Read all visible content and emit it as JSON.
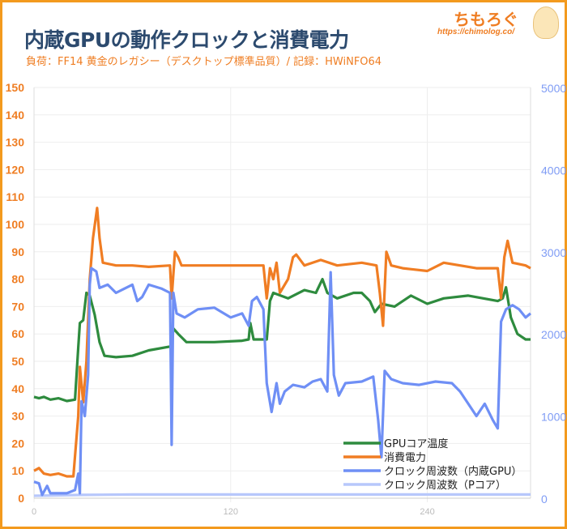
{
  "header": {
    "title": "内蔵GPUの動作クロックと消費電力",
    "subtitle": "負荷：FF14 黄金のレガシー（デスクトップ標準品質）/ 記録：HWiNFO64"
  },
  "logo": {
    "name": "ちもろぐ",
    "url": "https://chimolog.co/"
  },
  "colors": {
    "border": "#f39a1e",
    "title": "#2c4a6e",
    "left_axis": "#ef7d22",
    "right_axis": "#7f9cf5"
  },
  "chart_data": {
    "type": "line",
    "title": "内蔵GPUの動作クロックと消費電力",
    "grid": true,
    "legend_placement": "bottom-right",
    "xlim": [
      0,
      303
    ],
    "x_ticks": [
      "0",
      "120",
      "240"
    ],
    "x_tick_values": [
      0,
      120,
      240
    ],
    "ylim_left": [
      0,
      150
    ],
    "y_ticks_left": [
      "0",
      "10",
      "20",
      "30",
      "40",
      "50",
      "60",
      "70",
      "80",
      "90",
      "100",
      "110",
      "120",
      "130",
      "140",
      "150"
    ],
    "ylim_right": [
      0,
      5000
    ],
    "y_ticks_right": [
      "0",
      "1000",
      "2000",
      "3000",
      "4000",
      "5000"
    ],
    "series": [
      {
        "name": "GPUコア温度",
        "axis": "left",
        "color": "#2e8b3e",
        "points": [
          [
            0,
            37
          ],
          [
            3,
            36.5
          ],
          [
            6,
            37
          ],
          [
            10,
            36
          ],
          [
            15,
            36.5
          ],
          [
            20,
            35.5
          ],
          [
            25,
            36
          ],
          [
            27,
            55
          ],
          [
            28,
            64
          ],
          [
            30,
            65
          ],
          [
            32,
            75
          ],
          [
            34,
            74
          ],
          [
            37,
            67
          ],
          [
            40,
            57
          ],
          [
            43,
            52
          ],
          [
            50,
            51.5
          ],
          [
            60,
            52
          ],
          [
            70,
            54
          ],
          [
            84,
            55.5
          ],
          [
            85,
            62
          ],
          [
            88,
            60
          ],
          [
            93,
            57
          ],
          [
            110,
            57
          ],
          [
            127,
            57.5
          ],
          [
            131,
            58
          ],
          [
            132,
            64
          ],
          [
            134,
            58
          ],
          [
            142,
            58
          ],
          [
            144,
            72
          ],
          [
            146,
            75
          ],
          [
            155,
            73
          ],
          [
            165,
            76
          ],
          [
            172,
            75
          ],
          [
            176,
            80
          ],
          [
            179,
            75
          ],
          [
            185,
            73
          ],
          [
            195,
            75
          ],
          [
            200,
            75
          ],
          [
            205,
            72
          ],
          [
            208,
            68
          ],
          [
            212,
            71
          ],
          [
            220,
            70
          ],
          [
            230,
            74
          ],
          [
            240,
            71
          ],
          [
            250,
            73
          ],
          [
            265,
            74
          ],
          [
            283,
            72
          ],
          [
            286,
            73
          ],
          [
            288,
            77
          ],
          [
            291,
            66
          ],
          [
            295,
            60
          ],
          [
            300,
            58
          ],
          [
            303,
            58
          ]
        ]
      },
      {
        "name": "消費電力",
        "axis": "left",
        "color": "#f07d23",
        "points": [
          [
            0,
            10
          ],
          [
            3,
            11
          ],
          [
            6,
            9
          ],
          [
            10,
            8.5
          ],
          [
            15,
            9
          ],
          [
            20,
            8
          ],
          [
            24,
            8
          ],
          [
            27,
            30
          ],
          [
            28,
            48
          ],
          [
            30,
            35
          ],
          [
            32,
            50
          ],
          [
            34,
            80
          ],
          [
            36,
            95
          ],
          [
            38.5,
            106
          ],
          [
            40,
            95
          ],
          [
            42,
            86
          ],
          [
            50,
            85
          ],
          [
            60,
            85
          ],
          [
            70,
            84.5
          ],
          [
            83,
            85
          ],
          [
            84,
            73
          ],
          [
            86,
            90
          ],
          [
            88,
            88
          ],
          [
            90,
            85
          ],
          [
            110,
            85
          ],
          [
            130,
            85
          ],
          [
            140,
            85
          ],
          [
            142,
            73
          ],
          [
            144,
            84
          ],
          [
            146,
            80
          ],
          [
            148,
            86
          ],
          [
            150,
            75
          ],
          [
            155,
            80
          ],
          [
            158,
            88
          ],
          [
            160,
            89
          ],
          [
            165,
            85
          ],
          [
            175,
            87
          ],
          [
            185,
            85
          ],
          [
            200,
            86
          ],
          [
            209,
            85
          ],
          [
            211,
            75
          ],
          [
            213,
            63
          ],
          [
            215,
            90
          ],
          [
            218,
            85
          ],
          [
            225,
            84
          ],
          [
            240,
            83
          ],
          [
            250,
            86
          ],
          [
            260,
            85
          ],
          [
            270,
            84
          ],
          [
            283,
            84
          ],
          [
            285,
            73
          ],
          [
            287,
            88
          ],
          [
            289,
            94
          ],
          [
            292,
            86
          ],
          [
            300,
            85
          ],
          [
            303,
            84
          ]
        ]
      },
      {
        "name": "クロック周波数（内蔵GPU）",
        "axis": "right",
        "color": "#6f8ff5",
        "points": [
          [
            0,
            200
          ],
          [
            3,
            180
          ],
          [
            5,
            40
          ],
          [
            8,
            150
          ],
          [
            10,
            60
          ],
          [
            15,
            60
          ],
          [
            20,
            60
          ],
          [
            25,
            100
          ],
          [
            27,
            300
          ],
          [
            28,
            60
          ],
          [
            29,
            1180
          ],
          [
            31,
            1000
          ],
          [
            33,
            1500
          ],
          [
            34,
            2600
          ],
          [
            35,
            2800
          ],
          [
            38,
            2760
          ],
          [
            40,
            2560
          ],
          [
            45,
            2600
          ],
          [
            50,
            2500
          ],
          [
            55,
            2550
          ],
          [
            60,
            2600
          ],
          [
            63,
            2400
          ],
          [
            66,
            2450
          ],
          [
            70,
            2600
          ],
          [
            78,
            2550
          ],
          [
            83,
            2500
          ],
          [
            84,
            650
          ],
          [
            85,
            2500
          ],
          [
            87,
            2250
          ],
          [
            92,
            2200
          ],
          [
            100,
            2300
          ],
          [
            110,
            2320
          ],
          [
            120,
            2200
          ],
          [
            127,
            2250
          ],
          [
            131,
            2100
          ],
          [
            133,
            2400
          ],
          [
            136,
            2450
          ],
          [
            140,
            2300
          ],
          [
            142,
            1400
          ],
          [
            145,
            1050
          ],
          [
            148,
            1400
          ],
          [
            150,
            1150
          ],
          [
            153,
            1300
          ],
          [
            158,
            1380
          ],
          [
            165,
            1350
          ],
          [
            170,
            1420
          ],
          [
            175,
            1450
          ],
          [
            179,
            1300
          ],
          [
            181,
            2750
          ],
          [
            183,
            1500
          ],
          [
            186,
            1250
          ],
          [
            190,
            1400
          ],
          [
            200,
            1420
          ],
          [
            207,
            1480
          ],
          [
            210,
            950
          ],
          [
            212,
            500
          ],
          [
            214,
            1550
          ],
          [
            218,
            1450
          ],
          [
            225,
            1400
          ],
          [
            235,
            1380
          ],
          [
            245,
            1420
          ],
          [
            255,
            1400
          ],
          [
            260,
            1300
          ],
          [
            265,
            1150
          ],
          [
            270,
            1000
          ],
          [
            275,
            1150
          ],
          [
            280,
            950
          ],
          [
            283,
            850
          ],
          [
            285,
            2150
          ],
          [
            288,
            2300
          ],
          [
            292,
            2350
          ],
          [
            296,
            2300
          ],
          [
            300,
            2200
          ],
          [
            303,
            2250
          ]
        ]
      },
      {
        "name": "クロック周波数（Pコア）",
        "axis": "right",
        "color": "#b7c7fb",
        "points": [
          [
            0,
            30
          ],
          [
            30,
            40
          ],
          [
            60,
            45
          ],
          [
            120,
            45
          ],
          [
            180,
            45
          ],
          [
            240,
            45
          ],
          [
            303,
            45
          ]
        ]
      }
    ]
  }
}
